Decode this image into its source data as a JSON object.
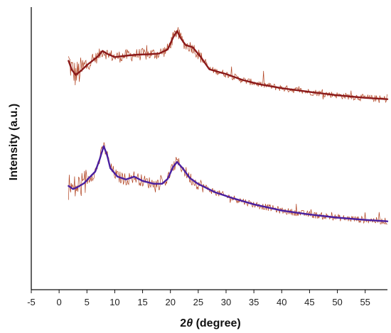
{
  "chart_data": {
    "type": "line",
    "xlabel_italic": "θ",
    "xlabel_prefix": "2",
    "xlabel_suffix": " (degree)",
    "ylabel": "Intensity (a.u.)",
    "xlim": [
      -5,
      59
    ],
    "ylim": [
      0,
      1
    ],
    "x_ticks": [
      -5,
      0,
      5,
      10,
      15,
      20,
      25,
      30,
      35,
      40,
      45,
      50,
      55
    ],
    "y_ticks_shown": false,
    "grid": false,
    "legend": "none",
    "series": [
      {
        "color_raw": "#b0401e",
        "color_fit": "#8b1a1a",
        "x": [
          1.7,
          2.3,
          3,
          4,
          5,
          6,
          7,
          7.8,
          8.6,
          10,
          12,
          14,
          16,
          18,
          19.5,
          20.5,
          21.2,
          21.8,
          22.7,
          24,
          25.5,
          27,
          30,
          33,
          36,
          40,
          45,
          50,
          55,
          59
        ],
        "y": [
          0.81,
          0.778,
          0.76,
          0.776,
          0.795,
          0.81,
          0.826,
          0.845,
          0.835,
          0.823,
          0.828,
          0.832,
          0.833,
          0.836,
          0.85,
          0.893,
          0.915,
          0.892,
          0.866,
          0.858,
          0.822,
          0.78,
          0.763,
          0.742,
          0.727,
          0.713,
          0.7,
          0.688,
          0.679,
          0.674
        ]
      },
      {
        "color_raw": "#b0401e",
        "color_fit": "#4a1fa0",
        "x": [
          1.7,
          2.5,
          3.3,
          4.5,
          5.5,
          6.5,
          7.3,
          8,
          8.6,
          9.2,
          10.5,
          12,
          13.5,
          15,
          17,
          18.5,
          19.5,
          20.5,
          21.2,
          22.2,
          23.5,
          25,
          28,
          31,
          35,
          40,
          45,
          50,
          55,
          59
        ],
        "y": [
          0.367,
          0.356,
          0.363,
          0.377,
          0.398,
          0.418,
          0.462,
          0.508,
          0.478,
          0.43,
          0.4,
          0.39,
          0.4,
          0.385,
          0.375,
          0.375,
          0.392,
          0.435,
          0.452,
          0.43,
          0.395,
          0.374,
          0.345,
          0.325,
          0.302,
          0.28,
          0.266,
          0.255,
          0.247,
          0.242
        ]
      }
    ]
  }
}
